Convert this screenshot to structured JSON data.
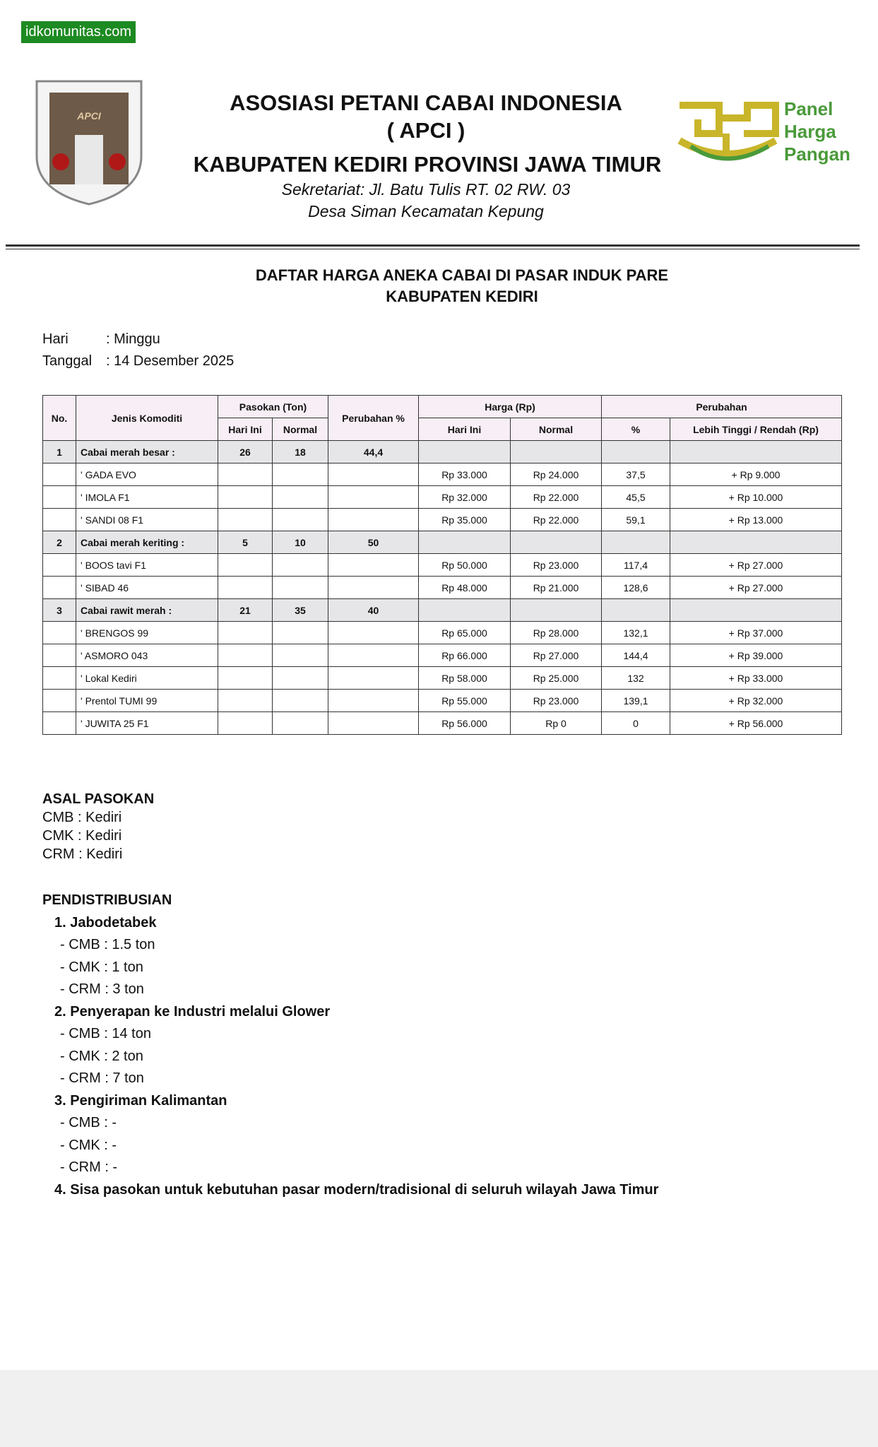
{
  "watermark": "idkomunitas.com",
  "header": {
    "org": "ASOSIASI PETANI CABAI INDONESIA",
    "abbr": "( APCI )",
    "region": "KABUPATEN KEDIRI PROVINSI JAWA TIMUR",
    "address_1": "Sekretariat: Jl. Batu Tulis RT. 02 RW. 03",
    "address_2": "Desa Siman Kecamatan Kepung",
    "logo_text": "APCI",
    "partner": [
      "Panel",
      "Harga",
      "Pangan"
    ]
  },
  "title": [
    "DAFTAR HARGA ANEKA CABAI DI PASAR INDUK PARE",
    "KABUPATEN KEDIRI"
  ],
  "info": [
    {
      "label": "Hari",
      "value": ": Minggu"
    },
    {
      "label": "Tanggal",
      "value": ": 14 Desember 2025"
    }
  ],
  "table": {
    "headers": {
      "no": "No.",
      "name": "Jenis Komoditi",
      "pasokan": "Pasokan (Ton)",
      "pasokan_today": "Hari Ini",
      "pasokan_normal": "Normal",
      "change": "Perubahan %",
      "harga": "Harga (Rp)",
      "harga_today": "Hari Ini",
      "harga_normal": "Normal",
      "perubahan": "Perubahan",
      "pct": "%",
      "diff": "Lebih Tinggi / Rendah (Rp)"
    },
    "rows": [
      {
        "no": "1",
        "name": "Cabai merah besar :",
        "today": "26",
        "normal": "18",
        "change": "44,4"
      },
      {
        "name": "' GADA EVO",
        "price_today": "Rp 33.000",
        "price_normal": "Rp 24.000",
        "pct": "37,5",
        "diff": "+ Rp 9.000"
      },
      {
        "name": "' IMOLA F1",
        "price_today": "Rp 32.000",
        "price_normal": "Rp 22.000",
        "pct": "45,5",
        "diff": "+ Rp 10.000"
      },
      {
        "name": "' SANDI 08 F1",
        "price_today": "Rp 35.000",
        "price_normal": "Rp 22.000",
        "pct": "59,1",
        "diff": "+ Rp 13.000"
      },
      {
        "no": "2",
        "name": "Cabai merah keriting :",
        "today": "5",
        "normal": "10",
        "change": "50"
      },
      {
        "name": "' BOOS tavi F1",
        "price_today": "Rp 50.000",
        "price_normal": "Rp 23.000",
        "pct": "117,4",
        "diff": "+ Rp 27.000"
      },
      {
        "name": "' SIBAD 46",
        "price_today": "Rp 48.000",
        "price_normal": "Rp 21.000",
        "pct": "128,6",
        "diff": "+ Rp 27.000"
      },
      {
        "no": "3",
        "name": "Cabai rawit merah :",
        "today": "21",
        "normal": "35",
        "change": "40"
      },
      {
        "name": "' BRENGOS 99",
        "price_today": "Rp 65.000",
        "price_normal": "Rp 28.000",
        "pct": "132,1",
        "diff": "+ Rp 37.000"
      },
      {
        "name": "' ASMORO 043",
        "price_today": "Rp 66.000",
        "price_normal": "Rp 27.000",
        "pct": "144,4",
        "diff": "+ Rp 39.000"
      },
      {
        "name": "' Lokal Kediri",
        "price_today": "Rp 58.000",
        "price_normal": "Rp 25.000",
        "pct": "132",
        "diff": "+ Rp 33.000"
      },
      {
        "name": "' Prentol TUMI 99",
        "price_today": "Rp 55.000",
        "price_normal": "Rp 23.000",
        "pct": "139,1",
        "diff": "+ Rp 32.000"
      },
      {
        "name": "' JUWITA 25 F1",
        "price_today": "Rp 56.000",
        "price_normal": "Rp 0",
        "pct": "0",
        "diff": "+ Rp 56.000"
      }
    ]
  },
  "asal_pasokan": {
    "title": "ASAL PASOKAN",
    "lines": [
      "CMB : Kediri",
      "CMK : Kediri",
      "CRM : Kediri"
    ]
  },
  "pendistribusian": {
    "title": "PENDISTRIBUSIAN",
    "items": [
      {
        "title": "1. Jabodetabek",
        "lines": [
          "- CMB : 1.5 ton",
          "- CMK : 1 ton",
          "- CRM : 3 ton"
        ]
      },
      {
        "title": "2. Penyerapan ke Industri melalui Glower",
        "lines": [
          "- CMB : 14 ton",
          "- CMK : 2 ton",
          "- CRM : 7 ton"
        ]
      },
      {
        "title": "3. Pengiriman Kalimantan",
        "lines": [
          "- CMB : -",
          "- CMK : -",
          "- CRM : -"
        ]
      },
      {
        "title": "4. Sisa pasokan untuk kebutuhan pasar modern/tradisional di seluruh wilayah Jawa Timur"
      }
    ]
  }
}
